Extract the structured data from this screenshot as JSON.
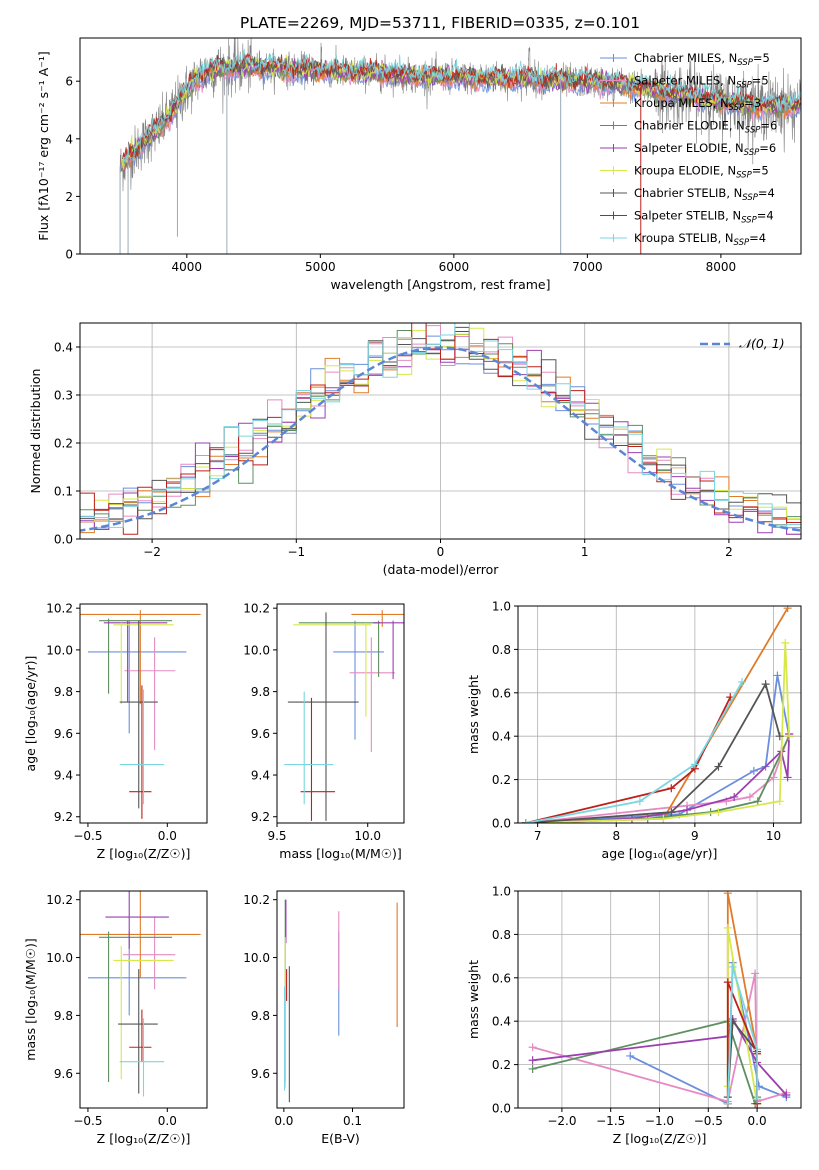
{
  "figure": {
    "title": "PLATE=2269, MJD=53711, FIBERID=0335, z=0.101"
  },
  "models": [
    {
      "name": "Chabrier MILES",
      "nssp": "5",
      "color": "#6a8fdc"
    },
    {
      "name": "Salpeter MILES",
      "nssp": "5",
      "color": "#e58bc3"
    },
    {
      "name": "Kroupa MILES",
      "nssp": "3",
      "color": "#e07b2a"
    },
    {
      "name": "Chabrier ELODIE",
      "nssp": "6",
      "color": "#5e8f60"
    },
    {
      "name": "Salpeter ELODIE",
      "nssp": "6",
      "color": "#9b3fb0"
    },
    {
      "name": "Kroupa ELODIE",
      "nssp": "5",
      "color": "#d6e84a"
    },
    {
      "name": "Chabrier STELIB",
      "nssp": "4",
      "color": "#555555"
    },
    {
      "name": "Salpeter STELIB",
      "nssp": "4",
      "color": "#c0201a"
    },
    {
      "name": "Kroupa STELIB",
      "nssp": "4",
      "color": "#7ad6e0"
    }
  ],
  "chart_data": [
    {
      "id": "spectrum",
      "type": "line",
      "xlabel": "wavelength [Angstrom, rest frame]",
      "ylabel": "Flux [fλ10⁻¹⁷ erg cm⁻² s⁻¹ A⁻¹]",
      "xlim": [
        3200,
        8600
      ],
      "ylim": [
        0,
        7.5
      ],
      "xticks": [
        4000,
        5000,
        6000,
        7000,
        8000
      ],
      "yticks": [
        0,
        2,
        4,
        6
      ],
      "grid": false,
      "legend": "right",
      "data_color": "#808080",
      "continuum": {
        "x": [
          3500,
          3600,
          3700,
          3800,
          3900,
          4000,
          4100,
          4200,
          4400,
          4600,
          4800,
          5000,
          5200,
          5400,
          5600,
          5800,
          6000,
          6200,
          6400,
          6600,
          6800,
          7000,
          7200,
          7400,
          7600,
          7800,
          8000,
          8200,
          8400,
          8600
        ],
        "y": [
          3.0,
          3.5,
          4.0,
          4.4,
          5.0,
          5.7,
          6.2,
          6.4,
          6.5,
          6.5,
          6.4,
          6.4,
          6.3,
          6.3,
          6.2,
          6.15,
          6.15,
          6.1,
          6.1,
          6.1,
          6.0,
          6.0,
          5.9,
          5.8,
          5.6,
          5.5,
          5.3,
          5.2,
          5.1,
          5.2
        ]
      }
    },
    {
      "id": "residuals",
      "type": "histogram",
      "xlabel": "(data-model)/error",
      "ylabel": "Normed distribution",
      "xlim": [
        -2.5,
        2.5
      ],
      "ylim": [
        0,
        0.45
      ],
      "xticks": [
        -2,
        -1,
        0,
        1,
        2
      ],
      "yticks": [
        0.0,
        0.1,
        0.2,
        0.3,
        0.4
      ],
      "grid": true,
      "legend": "top-right",
      "reference_label": "𝒩(0, 1)",
      "reference_color": "#5b86d6",
      "bin_width": 0.1
    },
    {
      "id": "age-vs-z",
      "type": "errorbar",
      "xlabel": "Z [log₁₀(Z/Z☉)]",
      "ylabel": "age  [log₁₀(age/yr)]",
      "xlim": [
        -0.55,
        0.25
      ],
      "ylim": [
        9.17,
        10.22
      ],
      "xticks": [
        -0.5,
        0.0
      ],
      "yticks": [
        9.2,
        9.4,
        9.6,
        9.8,
        10.0,
        10.2
      ],
      "grid": false,
      "points": [
        {
          "x": -0.24,
          "xerr": [
            0.26,
            0.36
          ],
          "y": 9.99,
          "yerr": [
            0.39,
            0.15
          ]
        },
        {
          "x": -0.08,
          "xerr": [
            0.19,
            0.13
          ],
          "y": 9.9,
          "yerr": [
            0.38,
            0.16
          ]
        },
        {
          "x": -0.17,
          "xerr": [
            0.4,
            0.38
          ],
          "y": 10.17,
          "yerr": [
            0.43,
            0.02
          ]
        },
        {
          "x": -0.37,
          "xerr": [
            0.06,
            0.4
          ],
          "y": 10.14,
          "yerr": [
            0.35,
            0.01
          ]
        },
        {
          "x": -0.25,
          "xerr": [
            0.15,
            0.25
          ],
          "y": 10.13,
          "yerr": [
            0.38,
            0.01
          ]
        },
        {
          "x": -0.29,
          "xerr": [
            0.05,
            0.33
          ],
          "y": 10.12,
          "yerr": [
            0.38,
            0.01
          ]
        },
        {
          "x": -0.18,
          "xerr": [
            0.12,
            0.12
          ],
          "y": 9.75,
          "yerr": [
            0.51,
            0.39
          ]
        },
        {
          "x": -0.16,
          "xerr": [
            0.08,
            0.06
          ],
          "y": 9.32,
          "yerr": [
            0.13,
            0.51
          ]
        },
        {
          "x": -0.15,
          "xerr": [
            0.15,
            0.13
          ],
          "y": 9.45,
          "yerr": [
            0.19,
            0.36
          ]
        }
      ]
    },
    {
      "id": "age-vs-mass",
      "type": "errorbar",
      "xlabel": "mass [log₁₀(M/M☉)]",
      "ylabel": "",
      "xlim": [
        9.5,
        10.2
      ],
      "ylim": [
        9.17,
        10.22
      ],
      "xticks": [
        9.5,
        10.0
      ],
      "yticks": [
        9.2,
        9.4,
        9.6,
        9.8,
        10.0,
        10.2
      ],
      "grid": false,
      "points": [
        {
          "x": 9.93,
          "xerr": [
            0.12,
            0.16
          ],
          "y": 9.99,
          "yerr": [
            0.42,
            0.15
          ]
        },
        {
          "x": 10.02,
          "xerr": [
            0.12,
            0.13
          ],
          "y": 9.89,
          "yerr": [
            0.38,
            0.17
          ]
        },
        {
          "x": 10.08,
          "xerr": [
            0.17,
            0.16
          ],
          "y": 10.17,
          "yerr": [
            0.06,
            0.02
          ]
        },
        {
          "x": 10.06,
          "xerr": [
            0.44,
            0.01
          ],
          "y": 10.13,
          "yerr": [
            0.26,
            0.01
          ]
        },
        {
          "x": 10.14,
          "xerr": [
            0.11,
            0.1
          ],
          "y": 10.13,
          "yerr": [
            0.27,
            0.01
          ]
        },
        {
          "x": 9.99,
          "xerr": [
            0.4,
            0.03
          ],
          "y": 10.12,
          "yerr": [
            0.44,
            0.01
          ]
        },
        {
          "x": 9.77,
          "xerr": [
            0.21,
            0.18
          ],
          "y": 9.75,
          "yerr": [
            0.57,
            0.43
          ]
        },
        {
          "x": 9.69,
          "xerr": [
            0.06,
            0.13
          ],
          "y": 9.32,
          "yerr": [
            0.14,
            0.45
          ]
        },
        {
          "x": 9.65,
          "xerr": [
            0.11,
            0.16
          ],
          "y": 9.45,
          "yerr": [
            0.19,
            0.35
          ]
        }
      ]
    },
    {
      "id": "mass-weight-vs-age",
      "type": "line",
      "xlabel": "age  [log₁₀(age/yr)]",
      "ylabel": "mass weight",
      "xlim": [
        6.75,
        10.35
      ],
      "ylim": [
        0,
        1
      ],
      "xticks": [
        7,
        8,
        9,
        10
      ],
      "yticks": [
        0.0,
        0.2,
        0.4,
        0.6,
        0.8,
        1.0
      ],
      "grid": true,
      "series": [
        {
          "x": [
            6.85,
            8.8,
            9.75,
            9.9,
            10.05,
            10.2
          ],
          "y": [
            0.0,
            0.04,
            0.24,
            0.26,
            0.68,
            0.4
          ]
        },
        {
          "x": [
            6.85,
            8.9,
            9.4,
            9.7,
            10.0,
            10.2
          ],
          "y": [
            0.0,
            0.08,
            0.1,
            0.12,
            0.21,
            0.41
          ]
        },
        {
          "x": [
            6.85,
            8.6,
            10.18
          ],
          "y": [
            0.0,
            0.02,
            0.99
          ]
        },
        {
          "x": [
            6.85,
            8.4,
            9.2,
            9.8,
            10.2
          ],
          "y": [
            0.0,
            0.02,
            0.05,
            0.1,
            0.4
          ]
        },
        {
          "x": [
            6.85,
            8.2,
            8.9,
            9.5,
            10.1,
            10.18,
            10.2
          ],
          "y": [
            0.0,
            0.02,
            0.06,
            0.12,
            0.33,
            0.21,
            0.41
          ]
        },
        {
          "x": [
            6.85,
            8.6,
            9.3,
            10.08,
            10.15,
            10.2
          ],
          "y": [
            0.0,
            0.02,
            0.05,
            0.1,
            0.83,
            0.4
          ]
        },
        {
          "x": [
            6.85,
            8.7,
            9.3,
            9.9,
            10.08
          ],
          "y": [
            0.0,
            0.05,
            0.26,
            0.64,
            0.4
          ]
        },
        {
          "x": [
            6.85,
            8.7,
            9.0,
            9.45
          ],
          "y": [
            0.0,
            0.16,
            0.25,
            0.58
          ]
        },
        {
          "x": [
            6.85,
            8.3,
            9.0,
            9.6
          ],
          "y": [
            0.0,
            0.1,
            0.27,
            0.65
          ]
        }
      ]
    },
    {
      "id": "mass-vs-z",
      "type": "errorbar",
      "xlabel": "Z [log₁₀(Z/Z☉)]",
      "ylabel": "mass [log₁₀(M/M☉)]",
      "xlim": [
        -0.55,
        0.25
      ],
      "ylim": [
        9.48,
        10.23
      ],
      "xticks": [
        -0.5,
        0.0
      ],
      "yticks": [
        9.6,
        9.8,
        10.0,
        10.2
      ],
      "grid": false,
      "points": [
        {
          "x": -0.24,
          "xerr": [
            0.26,
            0.36
          ],
          "y": 9.93,
          "yerr": [
            0.13,
            0.16
          ]
        },
        {
          "x": -0.08,
          "xerr": [
            0.2,
            0.13
          ],
          "y": 10.01,
          "yerr": [
            0.12,
            0.13
          ]
        },
        {
          "x": -0.17,
          "xerr": [
            0.4,
            0.38
          ],
          "y": 10.08,
          "yerr": [
            0.15,
            0.15
          ]
        },
        {
          "x": -0.37,
          "xerr": [
            0.06,
            0.4
          ],
          "y": 10.07,
          "yerr": [
            0.5,
            0.02
          ]
        },
        {
          "x": -0.24,
          "xerr": [
            0.15,
            0.25
          ],
          "y": 10.14,
          "yerr": [
            0.11,
            0.1
          ]
        },
        {
          "x": -0.29,
          "xerr": [
            0.05,
            0.33
          ],
          "y": 9.99,
          "yerr": [
            0.41,
            0.05
          ]
        },
        {
          "x": -0.18,
          "xerr": [
            0.13,
            0.12
          ],
          "y": 9.77,
          "yerr": [
            0.24,
            0.19
          ]
        },
        {
          "x": -0.16,
          "xerr": [
            0.08,
            0.06
          ],
          "y": 9.69,
          "yerr": [
            0.05,
            0.13
          ]
        },
        {
          "x": -0.15,
          "xerr": [
            0.15,
            0.13
          ],
          "y": 9.64,
          "yerr": [
            0.12,
            0.15
          ]
        }
      ]
    },
    {
      "id": "mass-vs-ebv",
      "type": "errorbar",
      "xlabel": "E(B-V)",
      "ylabel": "",
      "xlim": [
        -0.01,
        0.175
      ],
      "ylim": [
        9.48,
        10.23
      ],
      "xticks": [
        0.0,
        0.1
      ],
      "yticks": [
        9.6,
        9.8,
        10.0,
        10.2
      ],
      "grid": false,
      "points": [
        {
          "x": 0.08,
          "xerr": [
            0,
            0
          ],
          "y": 9.93,
          "yerr": [
            0.2,
            0.16
          ]
        },
        {
          "x": 0.08,
          "xerr": [
            0,
            0
          ],
          "y": 10.01,
          "yerr": [
            0.12,
            0.15
          ]
        },
        {
          "x": 0.165,
          "xerr": [
            0,
            0
          ],
          "y": 10.08,
          "yerr": [
            0.32,
            0.11
          ]
        },
        {
          "x": 0.002,
          "xerr": [
            0,
            0
          ],
          "y": 10.07,
          "yerr": [
            0.5,
            0.13
          ]
        },
        {
          "x": 0.003,
          "xerr": [
            0,
            0
          ],
          "y": 10.14,
          "yerr": [
            0.09,
            0.06
          ]
        },
        {
          "x": 0.002,
          "xerr": [
            0,
            0
          ],
          "y": 9.85,
          "yerr": [
            0.3,
            0.22
          ]
        },
        {
          "x": 0.008,
          "xerr": [
            0,
            0
          ],
          "y": 9.77,
          "yerr": [
            0.27,
            0.2
          ]
        },
        {
          "x": 0.004,
          "xerr": [
            0,
            0
          ],
          "y": 9.89,
          "yerr": [
            0.04,
            0.07
          ]
        },
        {
          "x": 0.001,
          "xerr": [
            0,
            0
          ],
          "y": 9.7,
          "yerr": [
            0.16,
            0.2
          ]
        }
      ]
    },
    {
      "id": "mass-weight-vs-z",
      "type": "line",
      "xlabel": "Z [log₁₀(Z/Z☉)]",
      "ylabel": "mass weight",
      "xlim": [
        -2.45,
        0.45
      ],
      "ylim": [
        0,
        1
      ],
      "xticks": [
        -2.0,
        -1.5,
        -1.0,
        -0.5,
        0.0
      ],
      "yticks": [
        0.0,
        0.2,
        0.4,
        0.6,
        0.8,
        1.0
      ],
      "grid": true,
      "series": [
        {
          "x": [
            -1.3,
            -0.3,
            -0.25,
            0.02,
            0.3
          ],
          "y": [
            0.24,
            0.02,
            0.67,
            0.1,
            0.05
          ]
        },
        {
          "x": [
            -2.3,
            -0.3,
            -0.02,
            0.0,
            0.3
          ],
          "y": [
            0.28,
            0.03,
            0.62,
            0.03,
            0.07
          ]
        },
        {
          "x": [
            -0.3,
            -0.3,
            0.0
          ],
          "y": [
            0.0,
            0.99,
            0.26
          ]
        },
        {
          "x": [
            -2.3,
            -0.3,
            -0.02,
            0.0
          ],
          "y": [
            0.18,
            0.4,
            0.02,
            0.05
          ]
        },
        {
          "x": [
            -2.3,
            -0.3,
            -0.25,
            0.0,
            0.3
          ],
          "y": [
            0.22,
            0.33,
            0.41,
            0.21,
            0.06
          ]
        },
        {
          "x": [
            -0.3,
            -0.3,
            0.0,
            0.0
          ],
          "y": [
            0.1,
            0.83,
            0.02,
            0.04
          ]
        },
        {
          "x": [
            -0.3,
            -0.25,
            0.0,
            0.0
          ],
          "y": [
            0.05,
            0.4,
            0.26,
            0.02
          ]
        },
        {
          "x": [
            -0.3,
            -0.3,
            0.0,
            0.0
          ],
          "y": [
            0.02,
            0.58,
            0.25,
            0.02
          ]
        },
        {
          "x": [
            -0.3,
            -0.25,
            0.0,
            0.0
          ],
          "y": [
            0.02,
            0.65,
            0.27,
            0.04
          ]
        }
      ]
    }
  ]
}
